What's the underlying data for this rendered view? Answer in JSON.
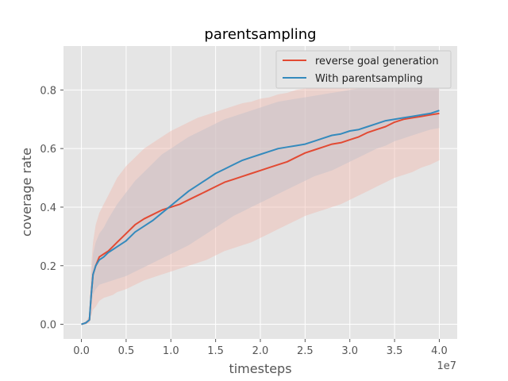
{
  "chart_data": {
    "type": "line",
    "title": "parentsampling",
    "xlabel": "timesteps",
    "ylabel": "coverage rate",
    "x_offset_label": "1e7",
    "xlim": [
      -2000000,
      42000000
    ],
    "ylim": [
      -0.05,
      0.95
    ],
    "x_ticks": [
      0,
      5000000,
      10000000,
      15000000,
      20000000,
      25000000,
      30000000,
      35000000,
      40000000
    ],
    "x_tick_labels": [
      "0.0",
      "0.5",
      "1.0",
      "1.5",
      "2.0",
      "2.5",
      "3.0",
      "3.5",
      "4.0"
    ],
    "y_ticks": [
      0.0,
      0.2,
      0.4,
      0.6,
      0.8
    ],
    "y_tick_labels": [
      "0.0",
      "0.2",
      "0.4",
      "0.6",
      "0.8"
    ],
    "grid": true,
    "legend_position": "top-right",
    "x": [
      0,
      500000,
      900000,
      1100000,
      1300000,
      1600000,
      2000000,
      2500000,
      3000000,
      3500000,
      4000000,
      5000000,
      6000000,
      7000000,
      8000000,
      9000000,
      10000000,
      11000000,
      12000000,
      13000000,
      14000000,
      15000000,
      16000000,
      17000000,
      18000000,
      19000000,
      20000000,
      21000000,
      22000000,
      23000000,
      24000000,
      25000000,
      26000000,
      27000000,
      28000000,
      29000000,
      30000000,
      31000000,
      32000000,
      33000000,
      34000000,
      35000000,
      36000000,
      37000000,
      38000000,
      39000000,
      40000000
    ],
    "series": [
      {
        "name": "reverse goal generation",
        "color": "#E24A33",
        "band_color": "#F0B8AE",
        "values": [
          0.0,
          0.005,
          0.015,
          0.1,
          0.17,
          0.2,
          0.23,
          0.24,
          0.25,
          0.265,
          0.28,
          0.31,
          0.34,
          0.36,
          0.375,
          0.39,
          0.4,
          0.41,
          0.425,
          0.44,
          0.455,
          0.47,
          0.485,
          0.495,
          0.505,
          0.515,
          0.525,
          0.535,
          0.545,
          0.555,
          0.57,
          0.585,
          0.595,
          0.605,
          0.615,
          0.62,
          0.63,
          0.64,
          0.655,
          0.665,
          0.675,
          0.69,
          0.7,
          0.705,
          0.71,
          0.715,
          0.72
        ],
        "lower": [
          0.0,
          0.0,
          0.005,
          0.03,
          0.05,
          0.06,
          0.08,
          0.09,
          0.095,
          0.1,
          0.11,
          0.12,
          0.135,
          0.15,
          0.16,
          0.17,
          0.18,
          0.19,
          0.2,
          0.21,
          0.22,
          0.235,
          0.25,
          0.26,
          0.27,
          0.28,
          0.295,
          0.31,
          0.325,
          0.34,
          0.355,
          0.37,
          0.38,
          0.39,
          0.4,
          0.41,
          0.425,
          0.44,
          0.455,
          0.47,
          0.485,
          0.5,
          0.51,
          0.52,
          0.535,
          0.545,
          0.56
        ],
        "upper": [
          0.0,
          0.01,
          0.03,
          0.2,
          0.28,
          0.34,
          0.38,
          0.41,
          0.44,
          0.47,
          0.5,
          0.54,
          0.57,
          0.6,
          0.62,
          0.64,
          0.66,
          0.675,
          0.69,
          0.705,
          0.715,
          0.725,
          0.735,
          0.745,
          0.755,
          0.76,
          0.77,
          0.775,
          0.785,
          0.79,
          0.8,
          0.805,
          0.81,
          0.815,
          0.82,
          0.825,
          0.83,
          0.835,
          0.84,
          0.845,
          0.85,
          0.855,
          0.86,
          0.865,
          0.87,
          0.875,
          0.88
        ]
      },
      {
        "name": "With parentsampling",
        "color": "#348ABD",
        "band_color": "#C6C2CB",
        "values": [
          0.0,
          0.005,
          0.015,
          0.1,
          0.17,
          0.2,
          0.22,
          0.23,
          0.245,
          0.255,
          0.265,
          0.285,
          0.315,
          0.335,
          0.355,
          0.38,
          0.405,
          0.43,
          0.455,
          0.475,
          0.495,
          0.515,
          0.53,
          0.545,
          0.56,
          0.57,
          0.58,
          0.59,
          0.6,
          0.605,
          0.61,
          0.615,
          0.625,
          0.635,
          0.645,
          0.65,
          0.66,
          0.665,
          0.675,
          0.685,
          0.695,
          0.7,
          0.705,
          0.71,
          0.715,
          0.72,
          0.73
        ],
        "lower": [
          0.0,
          0.0,
          0.01,
          0.06,
          0.1,
          0.12,
          0.135,
          0.14,
          0.145,
          0.15,
          0.155,
          0.165,
          0.18,
          0.195,
          0.21,
          0.225,
          0.24,
          0.255,
          0.27,
          0.29,
          0.31,
          0.33,
          0.35,
          0.37,
          0.385,
          0.4,
          0.415,
          0.43,
          0.445,
          0.46,
          0.475,
          0.49,
          0.505,
          0.515,
          0.525,
          0.54,
          0.555,
          0.57,
          0.585,
          0.6,
          0.61,
          0.625,
          0.635,
          0.645,
          0.655,
          0.665,
          0.67
        ],
        "upper": [
          0.0,
          0.01,
          0.02,
          0.16,
          0.24,
          0.28,
          0.31,
          0.33,
          0.36,
          0.385,
          0.41,
          0.45,
          0.49,
          0.52,
          0.55,
          0.58,
          0.6,
          0.62,
          0.64,
          0.655,
          0.67,
          0.685,
          0.7,
          0.71,
          0.72,
          0.73,
          0.74,
          0.75,
          0.76,
          0.765,
          0.77,
          0.775,
          0.78,
          0.785,
          0.79,
          0.795,
          0.8,
          0.805,
          0.81,
          0.815,
          0.82,
          0.825,
          0.83,
          0.835,
          0.84,
          0.845,
          0.85
        ]
      }
    ]
  }
}
